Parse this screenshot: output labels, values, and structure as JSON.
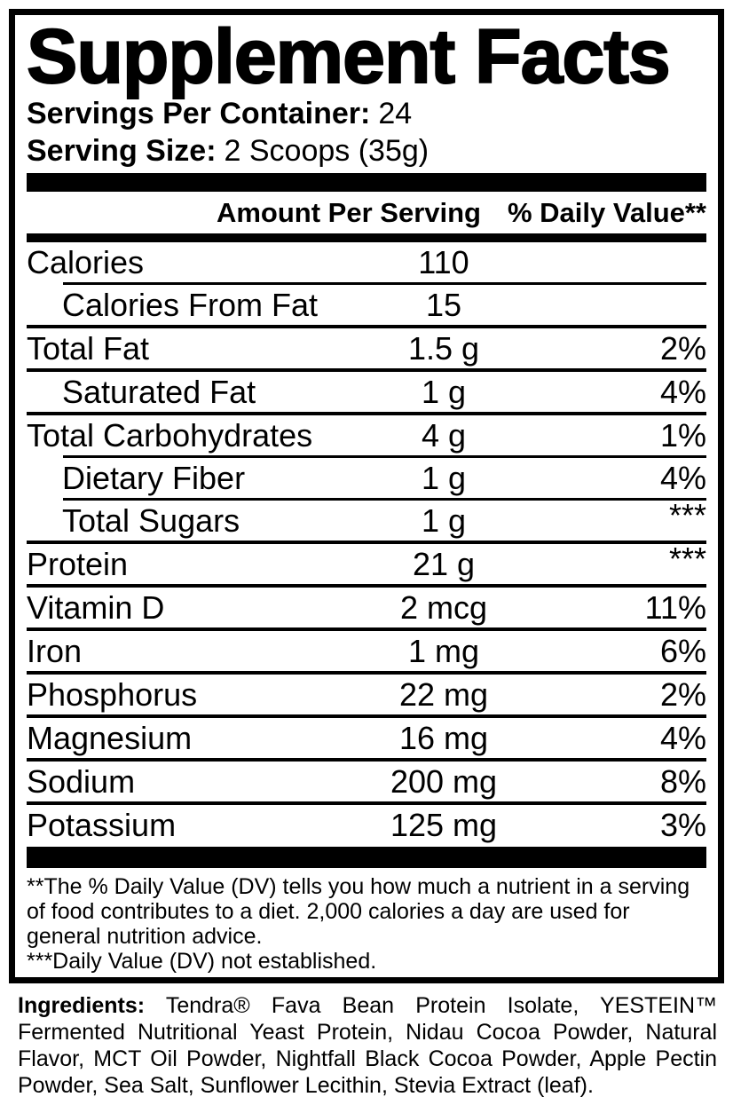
{
  "colors": {
    "text": "#000000",
    "background": "#ffffff"
  },
  "title": "Supplement Facts",
  "serving_info": {
    "servings_label": "Servings Per Container:",
    "servings_value": "24",
    "size_label": "Serving Size:",
    "size_value": "2 Scoops (35g)"
  },
  "columns": {
    "amount": "Amount Per Serving",
    "daily_value": "% Daily Value**"
  },
  "rows": [
    {
      "name": "Calories",
      "amount": "110",
      "dv": ""
    },
    {
      "name": "Calories From Fat",
      "amount": "15",
      "dv": ""
    },
    {
      "name": "Total Fat",
      "amount": "1.5 g",
      "dv": "2%"
    },
    {
      "name": "Saturated Fat",
      "amount": "1 g",
      "dv": "4%"
    },
    {
      "name": "Total Carbohydrates",
      "amount": "4 g",
      "dv": "1%"
    },
    {
      "name": "Dietary Fiber",
      "amount": "1 g",
      "dv": "4%"
    },
    {
      "name": "Total Sugars",
      "amount": "1 g",
      "dv": "***"
    },
    {
      "name": "Protein",
      "amount": "21 g",
      "dv": "***"
    },
    {
      "name": "Vitamin D",
      "amount": "2 mcg",
      "dv": "11%"
    },
    {
      "name": "Iron",
      "amount": "1 mg",
      "dv": "6%"
    },
    {
      "name": "Phosphorus",
      "amount": "22 mg",
      "dv": "2%"
    },
    {
      "name": "Magnesium",
      "amount": "16 mg",
      "dv": "4%"
    },
    {
      "name": "Sodium",
      "amount": "200 mg",
      "dv": "8%"
    },
    {
      "name": "Potassium",
      "amount": "125 mg",
      "dv": "3%"
    }
  ],
  "footnotes": {
    "daily_value_note": "**The % Daily Value (DV) tells you how much a nutrient in a serving of food contributes to a diet. 2,000 calories a day are used for general nutrition advice.",
    "not_established_note": "***Daily Value (DV) not established."
  },
  "ingredients": {
    "label": "Ingredients:",
    "text": "Tendra® Fava Bean Protein Isolate, YESTEIN™ Fermented Nutritional Yeast Protein, Nidau Cocoa Powder, Natural Flavor, MCT Oil Powder, Nightfall Black Cocoa Powder, Apple Pectin Powder, Sea Salt, Sunflower Lecithin, Stevia Extract (leaf)."
  }
}
